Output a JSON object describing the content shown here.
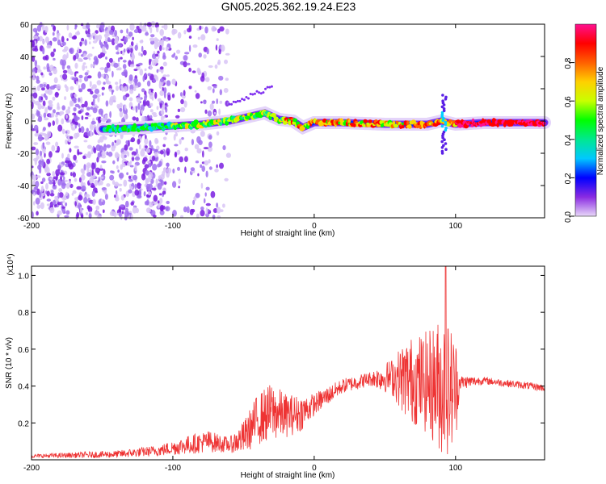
{
  "title": "GN05.2025.362.19.24.E23",
  "chart_data": [
    {
      "type": "heatmap",
      "name": "spectrogram",
      "xlabel": "Height of straight line (km)",
      "ylabel": "Frequency (Hz)",
      "xlim": [
        -200,
        163
      ],
      "ylim": [
        -60,
        60
      ],
      "xticks": [
        -200,
        -100,
        0,
        100
      ],
      "yticks": [
        -60,
        -40,
        -20,
        0,
        20,
        40,
        60
      ],
      "colorbar": {
        "label": "Normalized spectral amplitude",
        "range": [
          0,
          1
        ],
        "ticks": [
          "0.0",
          "0.2",
          "0.4",
          "0.6",
          "0.8"
        ],
        "tick_values": [
          0,
          0.2,
          0.4,
          0.6,
          0.8
        ],
        "colors": [
          "#e8d8f8",
          "#8a2be2",
          "#0000ff",
          "#00c8ff",
          "#00e890",
          "#00ff00",
          "#c8ff00",
          "#ffd000",
          "#ff6000",
          "#ff0000",
          "#ff1090"
        ]
      },
      "ridge": [
        {
          "x": -145,
          "f": -5
        },
        {
          "x": -120,
          "f": -4
        },
        {
          "x": -100,
          "f": -3
        },
        {
          "x": -80,
          "f": -2
        },
        {
          "x": -60,
          "f": 0
        },
        {
          "x": -45,
          "f": 3
        },
        {
          "x": -35,
          "f": 5
        },
        {
          "x": -25,
          "f": 1
        },
        {
          "x": -15,
          "f": 0
        },
        {
          "x": -8,
          "f": -4
        },
        {
          "x": 0,
          "f": -1
        },
        {
          "x": 20,
          "f": -1
        },
        {
          "x": 50,
          "f": -2
        },
        {
          "x": 80,
          "f": -2
        },
        {
          "x": 90,
          "f": 0
        },
        {
          "x": 100,
          "f": -2
        },
        {
          "x": 120,
          "f": -1
        },
        {
          "x": 163,
          "f": -1
        }
      ]
    },
    {
      "type": "line",
      "name": "snr",
      "xlabel": "Height of straight line (km)",
      "ylabel": "SNR (10 * v/v)",
      "scale_label": "(x10⁴)",
      "xlim": [
        -200,
        163
      ],
      "ylim": [
        0,
        1.05
      ],
      "xticks": [
        -200,
        -100,
        0,
        100
      ],
      "yticks": [
        0.2,
        0.4,
        0.6,
        0.8,
        1.0
      ],
      "color": "#ee3333",
      "envelope": [
        {
          "x": -200,
          "base": 0.02,
          "amp": 0.01
        },
        {
          "x": -140,
          "base": 0.03,
          "amp": 0.02
        },
        {
          "x": -110,
          "base": 0.05,
          "amp": 0.03
        },
        {
          "x": -90,
          "base": 0.08,
          "amp": 0.05
        },
        {
          "x": -75,
          "base": 0.1,
          "amp": 0.06
        },
        {
          "x": -60,
          "base": 0.08,
          "amp": 0.04
        },
        {
          "x": -50,
          "base": 0.12,
          "amp": 0.09
        },
        {
          "x": -40,
          "base": 0.22,
          "amp": 0.14
        },
        {
          "x": -30,
          "base": 0.26,
          "amp": 0.16
        },
        {
          "x": -20,
          "base": 0.24,
          "amp": 0.12
        },
        {
          "x": -10,
          "base": 0.25,
          "amp": 0.1
        },
        {
          "x": 0,
          "base": 0.3,
          "amp": 0.06
        },
        {
          "x": 20,
          "base": 0.4,
          "amp": 0.04
        },
        {
          "x": 40,
          "base": 0.44,
          "amp": 0.04
        },
        {
          "x": 55,
          "base": 0.45,
          "amp": 0.1
        },
        {
          "x": 65,
          "base": 0.44,
          "amp": 0.22
        },
        {
          "x": 80,
          "base": 0.42,
          "amp": 0.28
        },
        {
          "x": 92,
          "base": 0.4,
          "amp": 0.4
        },
        {
          "x": 100,
          "base": 0.38,
          "amp": 0.3
        },
        {
          "x": 103,
          "base": 0.42,
          "amp": 0.04
        },
        {
          "x": 120,
          "base": 0.43,
          "amp": 0.02
        },
        {
          "x": 163,
          "base": 0.39,
          "amp": 0.02
        }
      ],
      "peak": {
        "x": 93,
        "y": 1.05
      }
    }
  ]
}
